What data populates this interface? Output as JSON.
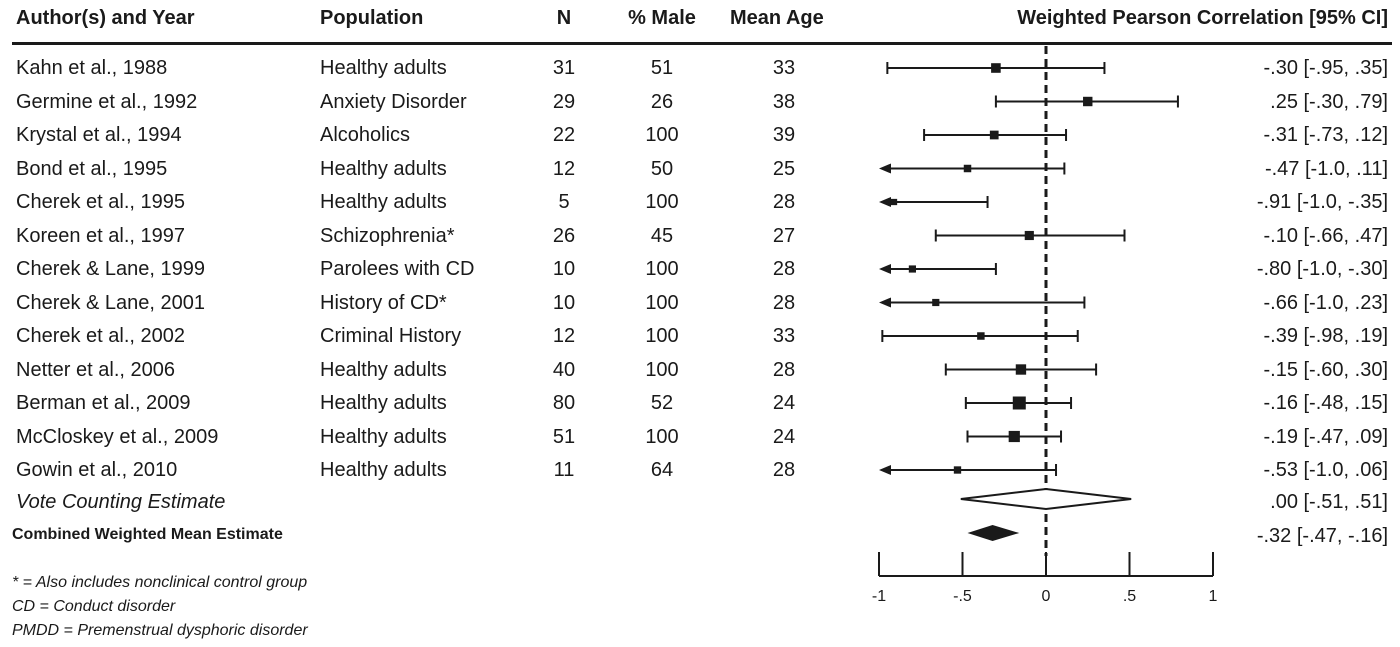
{
  "header": {
    "author": "Author(s) and Year",
    "population": "Population",
    "n": "N",
    "male": "% Male",
    "age": "Mean Age",
    "ci": "Weighted Pearson Correlation [95% CI]"
  },
  "rows": [
    {
      "author": "Kahn et al., 1988",
      "population": "Healthy adults",
      "n": "31",
      "male": "51",
      "age": "33",
      "ci": "-.30 [-.95,  .35]"
    },
    {
      "author": "Germine et al., 1992",
      "population": "Anxiety Disorder",
      "n": "29",
      "male": "26",
      "age": "38",
      "ci": ".25 [-.30,  .79]"
    },
    {
      "author": "Krystal et al., 1994",
      "population": "Alcoholics",
      "n": "22",
      "male": "100",
      "age": "39",
      "ci": "-.31 [-.73,  .12]"
    },
    {
      "author": "Bond et al., 1995",
      "population": "Healthy adults",
      "n": "12",
      "male": "50",
      "age": "25",
      "ci": "-.47 [-1.0,  .11]"
    },
    {
      "author": "Cherek et al., 1995",
      "population": "Healthy adults",
      "n": "5",
      "male": "100",
      "age": "28",
      "ci": "-.91 [-1.0, -.35]"
    },
    {
      "author": "Koreen et al., 1997",
      "population": "Schizophrenia*",
      "n": "26",
      "male": "45",
      "age": "27",
      "ci": "-.10 [-.66,  .47]"
    },
    {
      "author": "Cherek & Lane, 1999",
      "population": "Parolees with CD",
      "n": "10",
      "male": "100",
      "age": "28",
      "ci": "-.80 [-1.0, -.30]"
    },
    {
      "author": "Cherek & Lane, 2001",
      "population": "History of CD*",
      "n": "10",
      "male": "100",
      "age": "28",
      "ci": "-.66 [-1.0,  .23]"
    },
    {
      "author": "Cherek et al., 2002",
      "population": "Criminal History",
      "n": "12",
      "male": "100",
      "age": "33",
      "ci": "-.39 [-.98,  .19]"
    },
    {
      "author": "Netter et al., 2006",
      "population": "Healthy adults",
      "n": "40",
      "male": "100",
      "age": "28",
      "ci": "-.15 [-.60,  .30]"
    },
    {
      "author": "Berman et al., 2009",
      "population": "Healthy adults",
      "n": "80",
      "male": "52",
      "age": "24",
      "ci": "-.16 [-.48,  .15]"
    },
    {
      "author": "McCloskey et al., 2009",
      "population": "Healthy adults",
      "n": "51",
      "male": "100",
      "age": "24",
      "ci": "-.19 [-.47,  .09]"
    },
    {
      "author": "Gowin et al., 2010",
      "population": "Healthy adults",
      "n": "11",
      "male": "64",
      "age": "28",
      "ci": "-.53 [-1.0,  .06]"
    }
  ],
  "vote": {
    "label": "Vote Counting Estimate",
    "ci": ".00 [-.51,  .51]"
  },
  "combined": {
    "label": "Combined Weighted Mean Estimate",
    "ci": "-.32 [-.47, -.16]"
  },
  "footnotes": [
    "* = Also includes nonclinical control group",
    "CD = Conduct disorder",
    "PMDD = Premenstrual dysphoric disorder"
  ],
  "chart_data": {
    "type": "forest",
    "xlim": [
      -1,
      1
    ],
    "reference_line": 0,
    "ticks": [
      -1,
      -0.5,
      0,
      0.5,
      1
    ],
    "tick_labels": [
      "-1",
      "-.5",
      "0",
      ".5",
      "1"
    ],
    "studies": [
      {
        "est": -0.3,
        "lo": -0.95,
        "hi": 0.35,
        "weight": 31,
        "arrow": false
      },
      {
        "est": 0.25,
        "lo": -0.3,
        "hi": 0.79,
        "weight": 29,
        "arrow": false
      },
      {
        "est": -0.31,
        "lo": -0.73,
        "hi": 0.12,
        "weight": 22,
        "arrow": false
      },
      {
        "est": -0.47,
        "lo": -1.0,
        "hi": 0.11,
        "weight": 12,
        "arrow": true
      },
      {
        "est": -0.91,
        "lo": -1.0,
        "hi": -0.35,
        "weight": 5,
        "arrow": true
      },
      {
        "est": -0.1,
        "lo": -0.66,
        "hi": 0.47,
        "weight": 26,
        "arrow": false
      },
      {
        "est": -0.8,
        "lo": -1.0,
        "hi": -0.3,
        "weight": 10,
        "arrow": true
      },
      {
        "est": -0.66,
        "lo": -1.0,
        "hi": 0.23,
        "weight": 10,
        "arrow": true
      },
      {
        "est": -0.39,
        "lo": -0.98,
        "hi": 0.19,
        "weight": 12,
        "arrow": false
      },
      {
        "est": -0.15,
        "lo": -0.6,
        "hi": 0.3,
        "weight": 40,
        "arrow": false
      },
      {
        "est": -0.16,
        "lo": -0.48,
        "hi": 0.15,
        "weight": 80,
        "arrow": false
      },
      {
        "est": -0.19,
        "lo": -0.47,
        "hi": 0.09,
        "weight": 51,
        "arrow": false
      },
      {
        "est": -0.53,
        "lo": -1.0,
        "hi": 0.06,
        "weight": 11,
        "arrow": true
      }
    ],
    "vote_estimate": {
      "est": 0.0,
      "lo": -0.51,
      "hi": 0.51
    },
    "combined_estimate": {
      "est": -0.32,
      "lo": -0.47,
      "hi": -0.16
    }
  }
}
